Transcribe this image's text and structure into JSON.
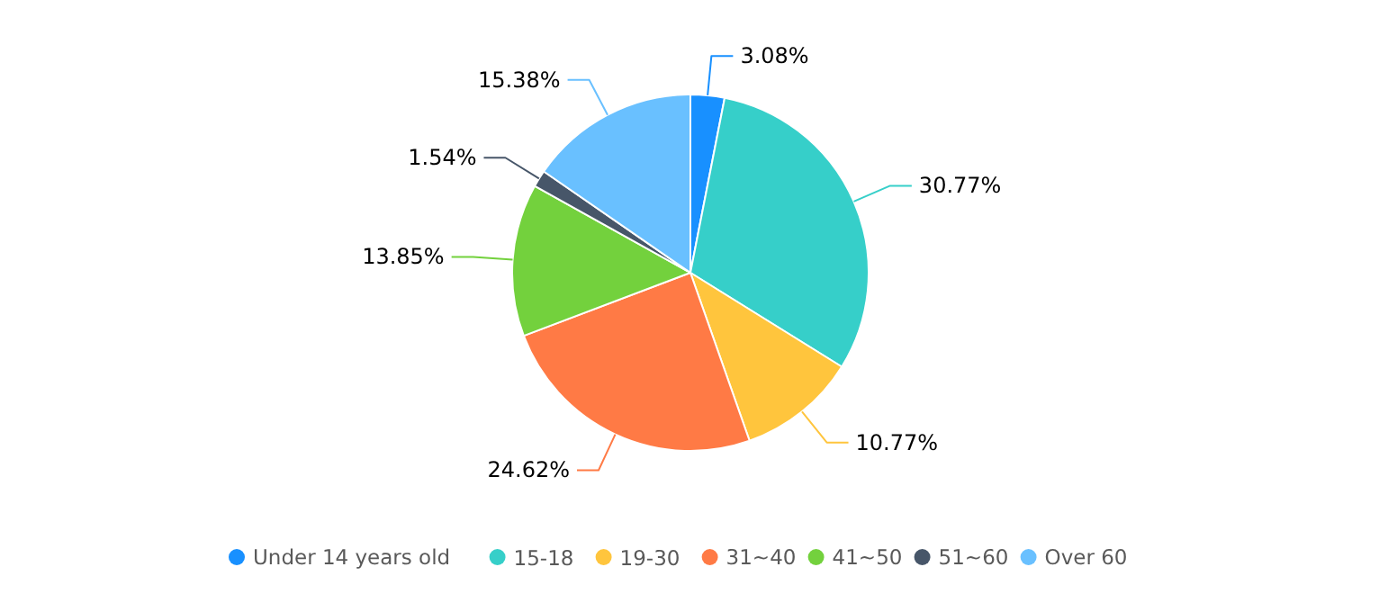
{
  "chart_data": {
    "type": "pie",
    "categories": [
      "Under 14 years old",
      "15-18",
      "19-30",
      "31~40",
      "41~50",
      "51~60",
      "Over 60"
    ],
    "values": [
      3.08,
      30.77,
      10.77,
      24.62,
      13.85,
      1.54,
      15.38
    ],
    "colors": [
      "#1890ff",
      "#36cfc9",
      "#ffc53d",
      "#ff7a45",
      "#73d13d",
      "#475669",
      "#69c0ff"
    ],
    "value_labels": [
      "3.08%",
      "30.77%",
      "10.77%",
      "24.62%",
      "13.85%",
      "1.54%",
      "15.38%"
    ],
    "legend": "bottom"
  }
}
